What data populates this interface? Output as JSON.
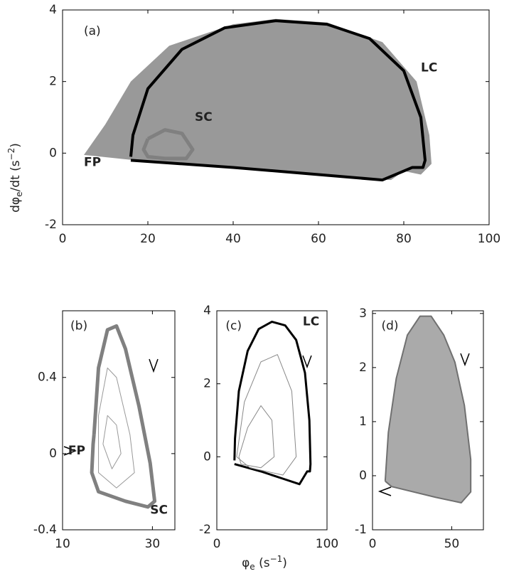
{
  "x_label": {
    "symbol": "φ",
    "sub": "e",
    "text": " (s",
    "sup": "−1",
    "close": ")"
  },
  "y_label": {
    "symbol": "dφ",
    "sub": "e",
    "text": "/dt (s",
    "sup": "−2",
    "close": ")"
  },
  "chart_data": [
    {
      "type": "line",
      "annotations": [
        "(a)",
        "LC",
        "SC",
        "FP"
      ],
      "xlim": [
        0,
        100
      ],
      "ylim": [
        -2,
        4
      ],
      "xticks": [
        0,
        20,
        40,
        60,
        80,
        100
      ],
      "yticks": [
        -2,
        0,
        2,
        4
      ],
      "series": [
        {
          "color": "#999999",
          "fill": true,
          "x": [
            5,
            10,
            16,
            25,
            40,
            50,
            62,
            75,
            83,
            86,
            86.5,
            84,
            80,
            77,
            17,
            5
          ],
          "y": [
            -0.05,
            0.8,
            2,
            3,
            3.6,
            3.75,
            3.65,
            3.1,
            2,
            0.5,
            -0.3,
            -0.6,
            -0.5,
            -0.75,
            -0.2,
            -0.05
          ]
        },
        {
          "color": "#000000",
          "width": 4,
          "x": [
            16,
            16.5,
            20,
            28,
            38,
            50,
            62,
            72,
            80,
            84,
            85,
            84.5,
            82,
            78,
            75,
            60,
            40,
            16
          ],
          "y": [
            -0.1,
            0.5,
            1.8,
            2.9,
            3.5,
            3.7,
            3.6,
            3.2,
            2.3,
            1,
            -0.2,
            -0.4,
            -0.4,
            -0.6,
            -0.75,
            -0.6,
            -0.4,
            -0.2
          ]
        },
        {
          "color": "#808080",
          "width": 5,
          "x": [
            20,
            24,
            28,
            30.5,
            29,
            24,
            20,
            19,
            20
          ],
          "y": [
            0.4,
            0.65,
            0.55,
            0.1,
            -0.15,
            -0.15,
            -0.1,
            0.1,
            0.4
          ]
        }
      ]
    },
    {
      "type": "line",
      "annotations": [
        "(b)",
        "FP",
        "SC"
      ],
      "xlim": [
        10,
        35
      ],
      "ylim": [
        -0.4,
        0.75
      ],
      "xticks": [
        10,
        30
      ],
      "yticks": [
        -0.4,
        0,
        0.4
      ],
      "series": [
        {
          "color": "#808080",
          "width": 5,
          "x": [
            17,
            18,
            20,
            22,
            24,
            27,
            29.5,
            30.5,
            29,
            24,
            18,
            16.5,
            16.8,
            17
          ],
          "y": [
            0.1,
            0.45,
            0.65,
            0.67,
            0.55,
            0.25,
            -0.05,
            -0.25,
            -0.28,
            -0.25,
            -0.2,
            -0.1,
            0.05,
            0.1
          ]
        },
        {
          "color": "#999999",
          "width": 1,
          "x": [
            18,
            20,
            22,
            25,
            26,
            22,
            18,
            18
          ],
          "y": [
            0.2,
            0.45,
            0.4,
            0.1,
            -0.1,
            -0.18,
            -0.1,
            0.2
          ]
        },
        {
          "color": "#999999",
          "width": 1,
          "x": [
            19,
            20,
            22,
            23,
            21,
            19
          ],
          "y": [
            0.05,
            0.2,
            0.15,
            0,
            -0.08,
            0.05
          ]
        }
      ]
    },
    {
      "type": "line",
      "annotations": [
        "(c)",
        "LC"
      ],
      "xlim": [
        0,
        100
      ],
      "ylim": [
        -2,
        4
      ],
      "xticks": [
        0,
        100
      ],
      "yticks": [
        -2,
        0,
        2,
        4
      ],
      "series": [
        {
          "color": "#000000",
          "width": 3,
          "x": [
            16,
            16.5,
            20,
            28,
            38,
            50,
            62,
            72,
            80,
            84,
            85,
            84.5,
            82,
            78,
            75,
            60,
            40,
            16
          ],
          "y": [
            -0.1,
            0.5,
            1.8,
            2.9,
            3.5,
            3.7,
            3.6,
            3.2,
            2.3,
            1,
            -0.2,
            -0.4,
            -0.4,
            -0.6,
            -0.75,
            -0.6,
            -0.4,
            -0.2
          ]
        },
        {
          "color": "#888888",
          "width": 1,
          "x": [
            18,
            25,
            40,
            55,
            68,
            72,
            60,
            30,
            18
          ],
          "y": [
            0,
            1.5,
            2.6,
            2.8,
            1.8,
            0,
            -0.5,
            -0.3,
            0
          ]
        },
        {
          "color": "#888888",
          "width": 1,
          "x": [
            20,
            28,
            40,
            50,
            52,
            40,
            22,
            20
          ],
          "y": [
            0,
            0.8,
            1.4,
            1,
            0,
            -0.3,
            -0.2,
            0
          ]
        }
      ]
    },
    {
      "type": "line",
      "annotations": [
        "(d)"
      ],
      "xlim": [
        0,
        70
      ],
      "ylim": [
        -1,
        3.05
      ],
      "xticks": [
        0,
        50
      ],
      "yticks": [
        -1,
        0,
        1,
        2,
        3
      ],
      "series": [
        {
          "color": "#aaaaaa",
          "fill": true,
          "x": [
            8,
            10,
            15,
            22,
            30,
            37,
            45,
            52,
            58,
            62,
            62,
            56,
            40,
            12,
            8
          ],
          "y": [
            -0.1,
            0.8,
            1.8,
            2.6,
            2.95,
            2.95,
            2.6,
            2.1,
            1.3,
            0.3,
            -0.3,
            -0.5,
            -0.4,
            -0.2,
            -0.1
          ]
        },
        {
          "color": "#707070",
          "width": 2,
          "x": [
            8,
            10,
            15,
            22,
            30,
            37,
            45,
            52,
            58,
            62,
            62,
            56,
            40,
            12,
            8
          ],
          "y": [
            -0.1,
            0.8,
            1.8,
            2.6,
            2.95,
            2.95,
            2.6,
            2.1,
            1.3,
            0.3,
            -0.3,
            -0.5,
            -0.4,
            -0.2,
            -0.1
          ]
        }
      ]
    }
  ]
}
